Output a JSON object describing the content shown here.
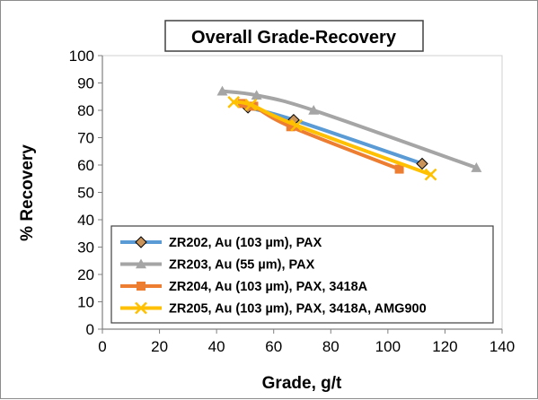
{
  "chart_data": {
    "type": "scatter",
    "title": "Overall Grade-Recovery",
    "xlabel": "Grade, g/t",
    "ylabel": "% Recovery",
    "xlim": [
      0,
      140
    ],
    "ylim": [
      0,
      100
    ],
    "xticks": [
      0,
      20,
      40,
      60,
      80,
      100,
      120,
      140
    ],
    "yticks": [
      0,
      10,
      20,
      30,
      40,
      50,
      60,
      70,
      80,
      90,
      100
    ],
    "grid": false,
    "legend_position": "bottom-left",
    "series": [
      {
        "name": "ZR202, Au (103 µm), PAX",
        "color": "#5b9bd5",
        "marker": "diamond",
        "marker_color": "#c9935a",
        "x": [
          51,
          67,
          112
        ],
        "y": [
          81,
          76.5,
          60.5
        ]
      },
      {
        "name": "ZR203, Au (55 µm), PAX",
        "color": "#a5a5a5",
        "marker": "triangle",
        "marker_color": "#a5a5a5",
        "x": [
          42,
          54,
          74,
          131
        ],
        "y": [
          87,
          85.5,
          80,
          59
        ]
      },
      {
        "name": "ZR204, Au (103 µm), PAX, 3418A",
        "color": "#ed7d31",
        "marker": "square",
        "marker_color": "#ed7d31",
        "x": [
          49,
          53,
          66,
          104
        ],
        "y": [
          82.5,
          81.5,
          74,
          58.5
        ]
      },
      {
        "name": "ZR205, Au (103 µm), PAX, 3418A, AMG900",
        "color": "#ffc000",
        "marker": "x",
        "marker_color": "#ffc000",
        "x": [
          46,
          52,
          68,
          115
        ],
        "y": [
          83,
          82,
          74.5,
          56.5
        ]
      }
    ]
  }
}
